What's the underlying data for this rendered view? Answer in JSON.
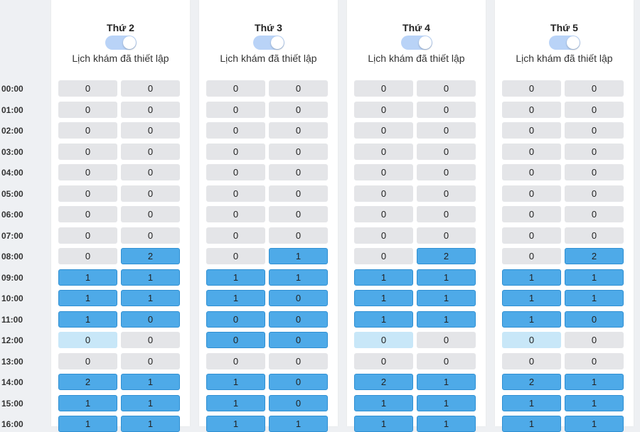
{
  "times": [
    "00:00",
    "01:00",
    "02:00",
    "03:00",
    "04:00",
    "05:00",
    "06:00",
    "07:00",
    "08:00",
    "09:00",
    "10:00",
    "11:00",
    "12:00",
    "13:00",
    "14:00",
    "15:00",
    "16:00"
  ],
  "days": [
    {
      "title": "Thứ 2",
      "toggle": true,
      "subtitle": "Lịch khám đã thiết lập",
      "values": [
        [
          0,
          0
        ],
        [
          0,
          0
        ],
        [
          0,
          0
        ],
        [
          0,
          0
        ],
        [
          0,
          0
        ],
        [
          0,
          0
        ],
        [
          0,
          0
        ],
        [
          0,
          0
        ],
        [
          0,
          2
        ],
        [
          1,
          1
        ],
        [
          1,
          1
        ],
        [
          1,
          0
        ],
        [
          0,
          0
        ],
        [
          0,
          0
        ],
        [
          2,
          1
        ],
        [
          1,
          1
        ],
        [
          1,
          1
        ]
      ],
      "states": [
        [
          "grey",
          "grey"
        ],
        [
          "grey",
          "grey"
        ],
        [
          "grey",
          "grey"
        ],
        [
          "grey",
          "grey"
        ],
        [
          "grey",
          "grey"
        ],
        [
          "grey",
          "grey"
        ],
        [
          "grey",
          "grey"
        ],
        [
          "grey",
          "grey"
        ],
        [
          "grey",
          "blue"
        ],
        [
          "blue",
          "blue"
        ],
        [
          "blue",
          "blue"
        ],
        [
          "blue",
          "blue"
        ],
        [
          "light",
          "grey"
        ],
        [
          "grey",
          "grey"
        ],
        [
          "blue",
          "blue"
        ],
        [
          "blue",
          "blue"
        ],
        [
          "blue",
          "blue"
        ]
      ]
    },
    {
      "title": "Thứ 3",
      "toggle": true,
      "subtitle": "Lịch khám đã thiết lập",
      "values": [
        [
          0,
          0
        ],
        [
          0,
          0
        ],
        [
          0,
          0
        ],
        [
          0,
          0
        ],
        [
          0,
          0
        ],
        [
          0,
          0
        ],
        [
          0,
          0
        ],
        [
          0,
          0
        ],
        [
          0,
          1
        ],
        [
          1,
          1
        ],
        [
          1,
          0
        ],
        [
          0,
          0
        ],
        [
          0,
          0
        ],
        [
          0,
          0
        ],
        [
          1,
          0
        ],
        [
          1,
          0
        ],
        [
          1,
          1
        ]
      ],
      "states": [
        [
          "grey",
          "grey"
        ],
        [
          "grey",
          "grey"
        ],
        [
          "grey",
          "grey"
        ],
        [
          "grey",
          "grey"
        ],
        [
          "grey",
          "grey"
        ],
        [
          "grey",
          "grey"
        ],
        [
          "grey",
          "grey"
        ],
        [
          "grey",
          "grey"
        ],
        [
          "grey",
          "blue"
        ],
        [
          "blue",
          "blue"
        ],
        [
          "blue",
          "blue"
        ],
        [
          "blue",
          "blue"
        ],
        [
          "blue",
          "blue"
        ],
        [
          "grey",
          "grey"
        ],
        [
          "blue",
          "blue"
        ],
        [
          "blue",
          "blue"
        ],
        [
          "blue",
          "blue"
        ]
      ]
    },
    {
      "title": "Thứ 4",
      "toggle": true,
      "subtitle": "Lịch khám đã thiết lập",
      "values": [
        [
          0,
          0
        ],
        [
          0,
          0
        ],
        [
          0,
          0
        ],
        [
          0,
          0
        ],
        [
          0,
          0
        ],
        [
          0,
          0
        ],
        [
          0,
          0
        ],
        [
          0,
          0
        ],
        [
          0,
          2
        ],
        [
          1,
          1
        ],
        [
          1,
          1
        ],
        [
          1,
          1
        ],
        [
          0,
          0
        ],
        [
          0,
          0
        ],
        [
          2,
          1
        ],
        [
          1,
          1
        ],
        [
          1,
          1
        ]
      ],
      "states": [
        [
          "grey",
          "grey"
        ],
        [
          "grey",
          "grey"
        ],
        [
          "grey",
          "grey"
        ],
        [
          "grey",
          "grey"
        ],
        [
          "grey",
          "grey"
        ],
        [
          "grey",
          "grey"
        ],
        [
          "grey",
          "grey"
        ],
        [
          "grey",
          "grey"
        ],
        [
          "grey",
          "blue"
        ],
        [
          "blue",
          "blue"
        ],
        [
          "blue",
          "blue"
        ],
        [
          "blue",
          "blue"
        ],
        [
          "light",
          "grey"
        ],
        [
          "grey",
          "grey"
        ],
        [
          "blue",
          "blue"
        ],
        [
          "blue",
          "blue"
        ],
        [
          "blue",
          "blue"
        ]
      ]
    },
    {
      "title": "Thứ 5",
      "toggle": true,
      "subtitle": "Lịch khám đã thiết lập",
      "values": [
        [
          0,
          0
        ],
        [
          0,
          0
        ],
        [
          0,
          0
        ],
        [
          0,
          0
        ],
        [
          0,
          0
        ],
        [
          0,
          0
        ],
        [
          0,
          0
        ],
        [
          0,
          0
        ],
        [
          0,
          2
        ],
        [
          1,
          1
        ],
        [
          1,
          1
        ],
        [
          1,
          0
        ],
        [
          0,
          0
        ],
        [
          0,
          0
        ],
        [
          2,
          1
        ],
        [
          1,
          1
        ],
        [
          1,
          1
        ]
      ],
      "states": [
        [
          "grey",
          "grey"
        ],
        [
          "grey",
          "grey"
        ],
        [
          "grey",
          "grey"
        ],
        [
          "grey",
          "grey"
        ],
        [
          "grey",
          "grey"
        ],
        [
          "grey",
          "grey"
        ],
        [
          "grey",
          "grey"
        ],
        [
          "grey",
          "grey"
        ],
        [
          "grey",
          "blue"
        ],
        [
          "blue",
          "blue"
        ],
        [
          "blue",
          "blue"
        ],
        [
          "blue",
          "blue"
        ],
        [
          "light",
          "grey"
        ],
        [
          "grey",
          "grey"
        ],
        [
          "blue",
          "blue"
        ],
        [
          "blue",
          "blue"
        ],
        [
          "blue",
          "blue"
        ]
      ]
    }
  ]
}
